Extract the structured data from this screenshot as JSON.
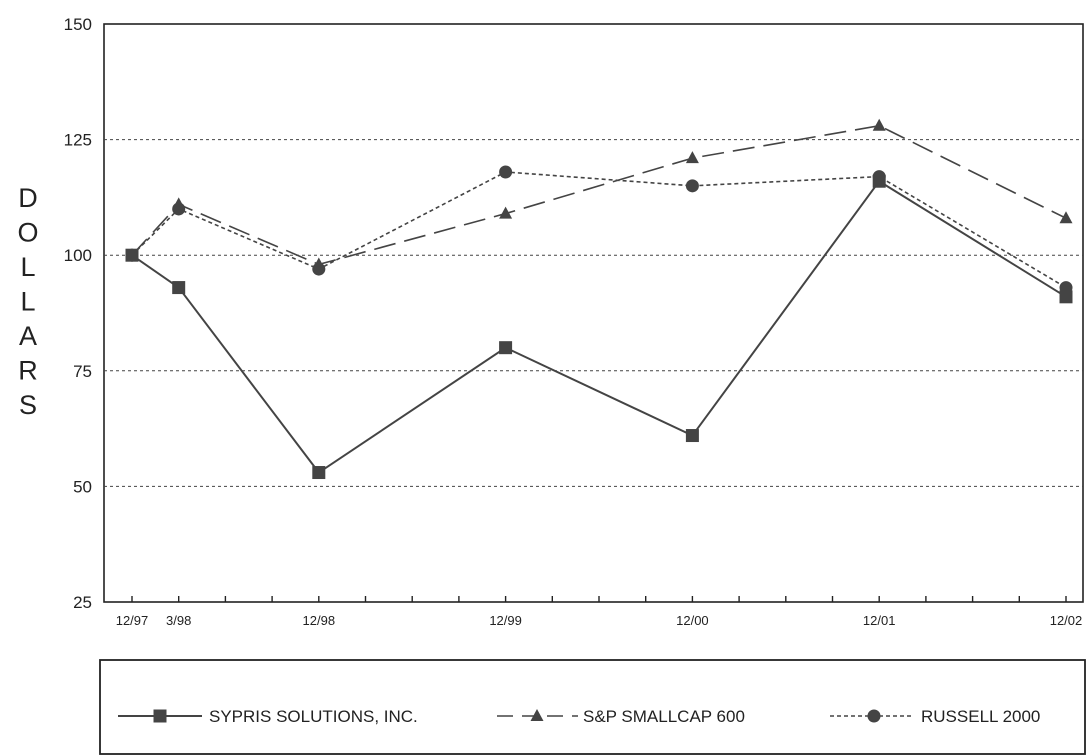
{
  "chart_data": {
    "type": "line",
    "title": "",
    "xlabel": "",
    "ylabel": "DOLLARS",
    "ylim": [
      25,
      150
    ],
    "yticks": [
      25,
      50,
      75,
      100,
      125,
      150
    ],
    "grid": "horizontal dashed at 50, 75, 100, 125",
    "legend_position": "bottom",
    "x": [
      "12/97",
      "3/98",
      "12/98",
      "12/99",
      "12/00",
      "12/01",
      "12/02"
    ],
    "series": [
      {
        "name": "SYPRIS SOLUTIONS, INC.",
        "values": [
          100,
          93,
          53,
          80,
          61,
          116,
          91
        ],
        "line_style": "solid",
        "marker": "square"
      },
      {
        "name": "S&P SMALLCAP 600",
        "values": [
          100,
          111,
          98,
          109,
          121,
          128,
          108
        ],
        "line_style": "dashed",
        "marker": "triangle"
      },
      {
        "name": "RUSSELL 2000",
        "values": [
          100,
          110,
          97,
          118,
          115,
          117,
          93
        ],
        "line_style": "dotted",
        "marker": "circle"
      }
    ]
  }
}
